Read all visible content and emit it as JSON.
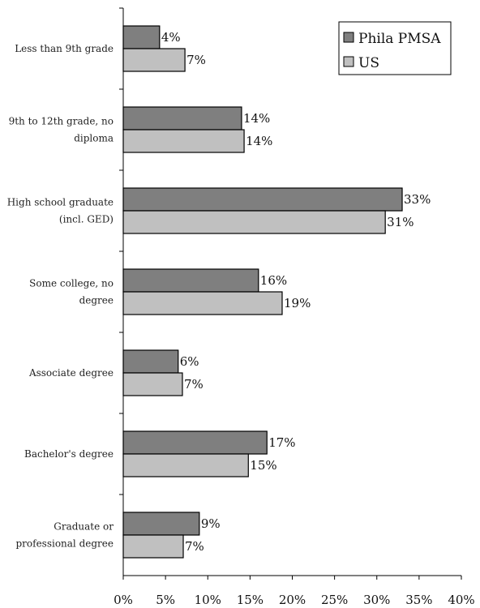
{
  "chart_data": {
    "type": "bar",
    "orientation": "horizontal",
    "categories": [
      "Less than 9th grade",
      "9th to 12th grade, no diploma",
      "High school graduate (incl. GED)",
      "Some college, no degree",
      "Associate degree",
      "Bachelor's degree",
      "Graduate or professional degree"
    ],
    "category_lines": [
      [
        "Less than 9th grade"
      ],
      [
        "9th to 12th grade, no",
        "diploma"
      ],
      [
        "High school graduate",
        "(incl. GED)"
      ],
      [
        "Some college, no",
        "degree"
      ],
      [
        "Associate degree"
      ],
      [
        "Bachelor's degree"
      ],
      [
        "Graduate or",
        "professional degree"
      ]
    ],
    "series": [
      {
        "name": "Phila PMSA",
        "color": "#7f7f7f",
        "values": [
          4.3,
          14,
          33,
          16,
          6.5,
          17,
          9
        ]
      },
      {
        "name": "US",
        "color": "#c0c0c0",
        "values": [
          7.3,
          14.3,
          31,
          18.8,
          7,
          14.8,
          7.1
        ]
      }
    ],
    "data_labels": [
      [
        "4%",
        "14%",
        "33%",
        "16%",
        "6%",
        "17%",
        "9%"
      ],
      [
        "7%",
        "14%",
        "31%",
        "19%",
        "7%",
        "15%",
        "7%"
      ]
    ],
    "x_ticks": [
      0,
      5,
      10,
      15,
      20,
      25,
      30,
      35,
      40
    ],
    "x_tick_labels": [
      "0%",
      "5%",
      "10%",
      "15%",
      "20%",
      "25%",
      "30%",
      "35%",
      "40%"
    ],
    "xlim": [
      0,
      40
    ],
    "grid": false,
    "legend": {
      "position": "top-right"
    }
  }
}
